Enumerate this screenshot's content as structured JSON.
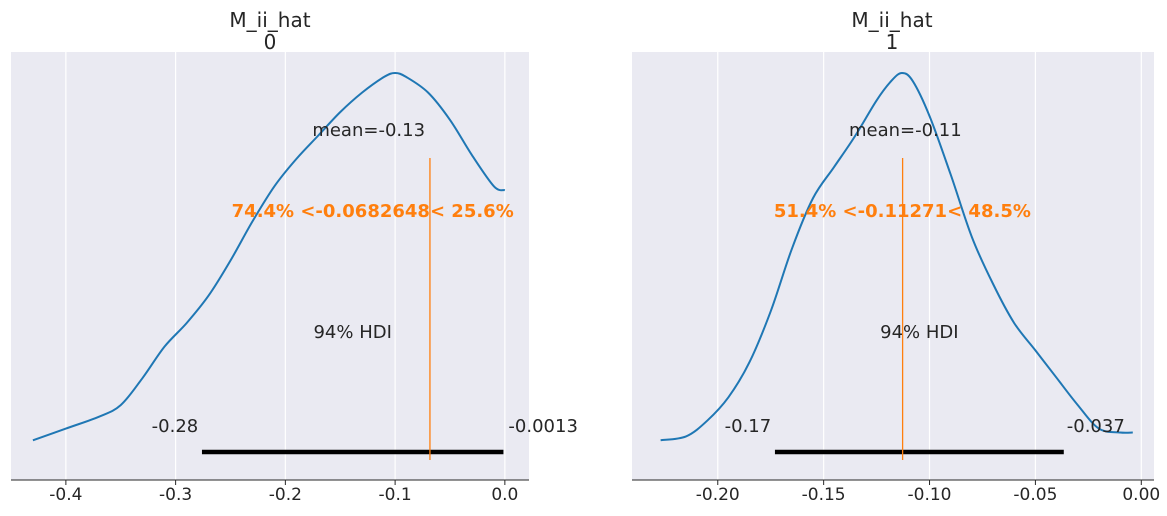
{
  "chart_data": [
    {
      "type": "density",
      "title_line1": "M_ii_hat",
      "title_line2": "0",
      "xlim": [
        -0.45,
        0.022
      ],
      "ylim": [
        0,
        1.0
      ],
      "xticks": [
        -0.4,
        -0.3,
        -0.2,
        -0.1,
        0.0
      ],
      "xtick_labels": [
        "-0.4",
        "-0.3",
        "-0.2",
        "-0.1",
        "0.0"
      ],
      "grid": true,
      "curve": {
        "x": [
          -0.43,
          -0.4,
          -0.37,
          -0.35,
          -0.33,
          -0.31,
          -0.29,
          -0.27,
          -0.25,
          -0.23,
          -0.21,
          -0.19,
          -0.17,
          -0.15,
          -0.13,
          -0.11,
          -0.1,
          -0.09,
          -0.07,
          -0.05,
          -0.03,
          -0.01,
          0.0
        ],
        "y": [
          0.03,
          0.06,
          0.09,
          0.12,
          0.19,
          0.27,
          0.33,
          0.4,
          0.49,
          0.59,
          0.68,
          0.75,
          0.81,
          0.87,
          0.92,
          0.96,
          0.97,
          0.96,
          0.92,
          0.85,
          0.76,
          0.68,
          0.67
        ]
      },
      "mean_label": "mean=-0.13",
      "hdi_label": "94% HDI",
      "hdi": [
        -0.276,
        -0.0013
      ],
      "hdi_low_label": "-0.28",
      "hdi_high_label": "-0.0013",
      "ref_val": -0.0682648,
      "ref_label": "74.4% <-0.0682648< 25.6%"
    },
    {
      "type": "density",
      "title_line1": "M_ii_hat",
      "title_line2": "1",
      "xlim": [
        -0.2405,
        0.006
      ],
      "ylim": [
        0,
        1.0
      ],
      "xticks": [
        -0.2,
        -0.15,
        -0.1,
        -0.05,
        0.0
      ],
      "xtick_labels": [
        "-0.20",
        "-0.15",
        "-0.10",
        "-0.05",
        "0.00"
      ],
      "grid": true,
      "curve": {
        "x": [
          -0.227,
          -0.215,
          -0.205,
          -0.195,
          -0.185,
          -0.175,
          -0.165,
          -0.155,
          -0.145,
          -0.135,
          -0.125,
          -0.118,
          -0.113,
          -0.108,
          -0.1,
          -0.09,
          -0.08,
          -0.07,
          -0.06,
          -0.05,
          -0.04,
          -0.03,
          -0.02,
          -0.01,
          -0.004
        ],
        "y": [
          0.03,
          0.04,
          0.08,
          0.14,
          0.23,
          0.36,
          0.52,
          0.65,
          0.73,
          0.81,
          0.9,
          0.95,
          0.97,
          0.95,
          0.86,
          0.71,
          0.55,
          0.43,
          0.33,
          0.26,
          0.19,
          0.12,
          0.06,
          0.05,
          0.05
        ]
      },
      "mean_label": "mean=-0.11",
      "hdi_label": "94% HDI",
      "hdi": [
        -0.173,
        -0.0366
      ],
      "hdi_low_label": "-0.17",
      "hdi_high_label": "-0.037",
      "ref_val": -0.11271,
      "ref_label": "51.4% <-0.11271< 48.5%"
    }
  ],
  "colors": {
    "panel_bg": "#eaeaf2",
    "grid": "#ffffff",
    "curve": "#1f77b4",
    "ref_line": "#ff7f0e",
    "hdi_bar": "#000000",
    "text": "#262626"
  }
}
